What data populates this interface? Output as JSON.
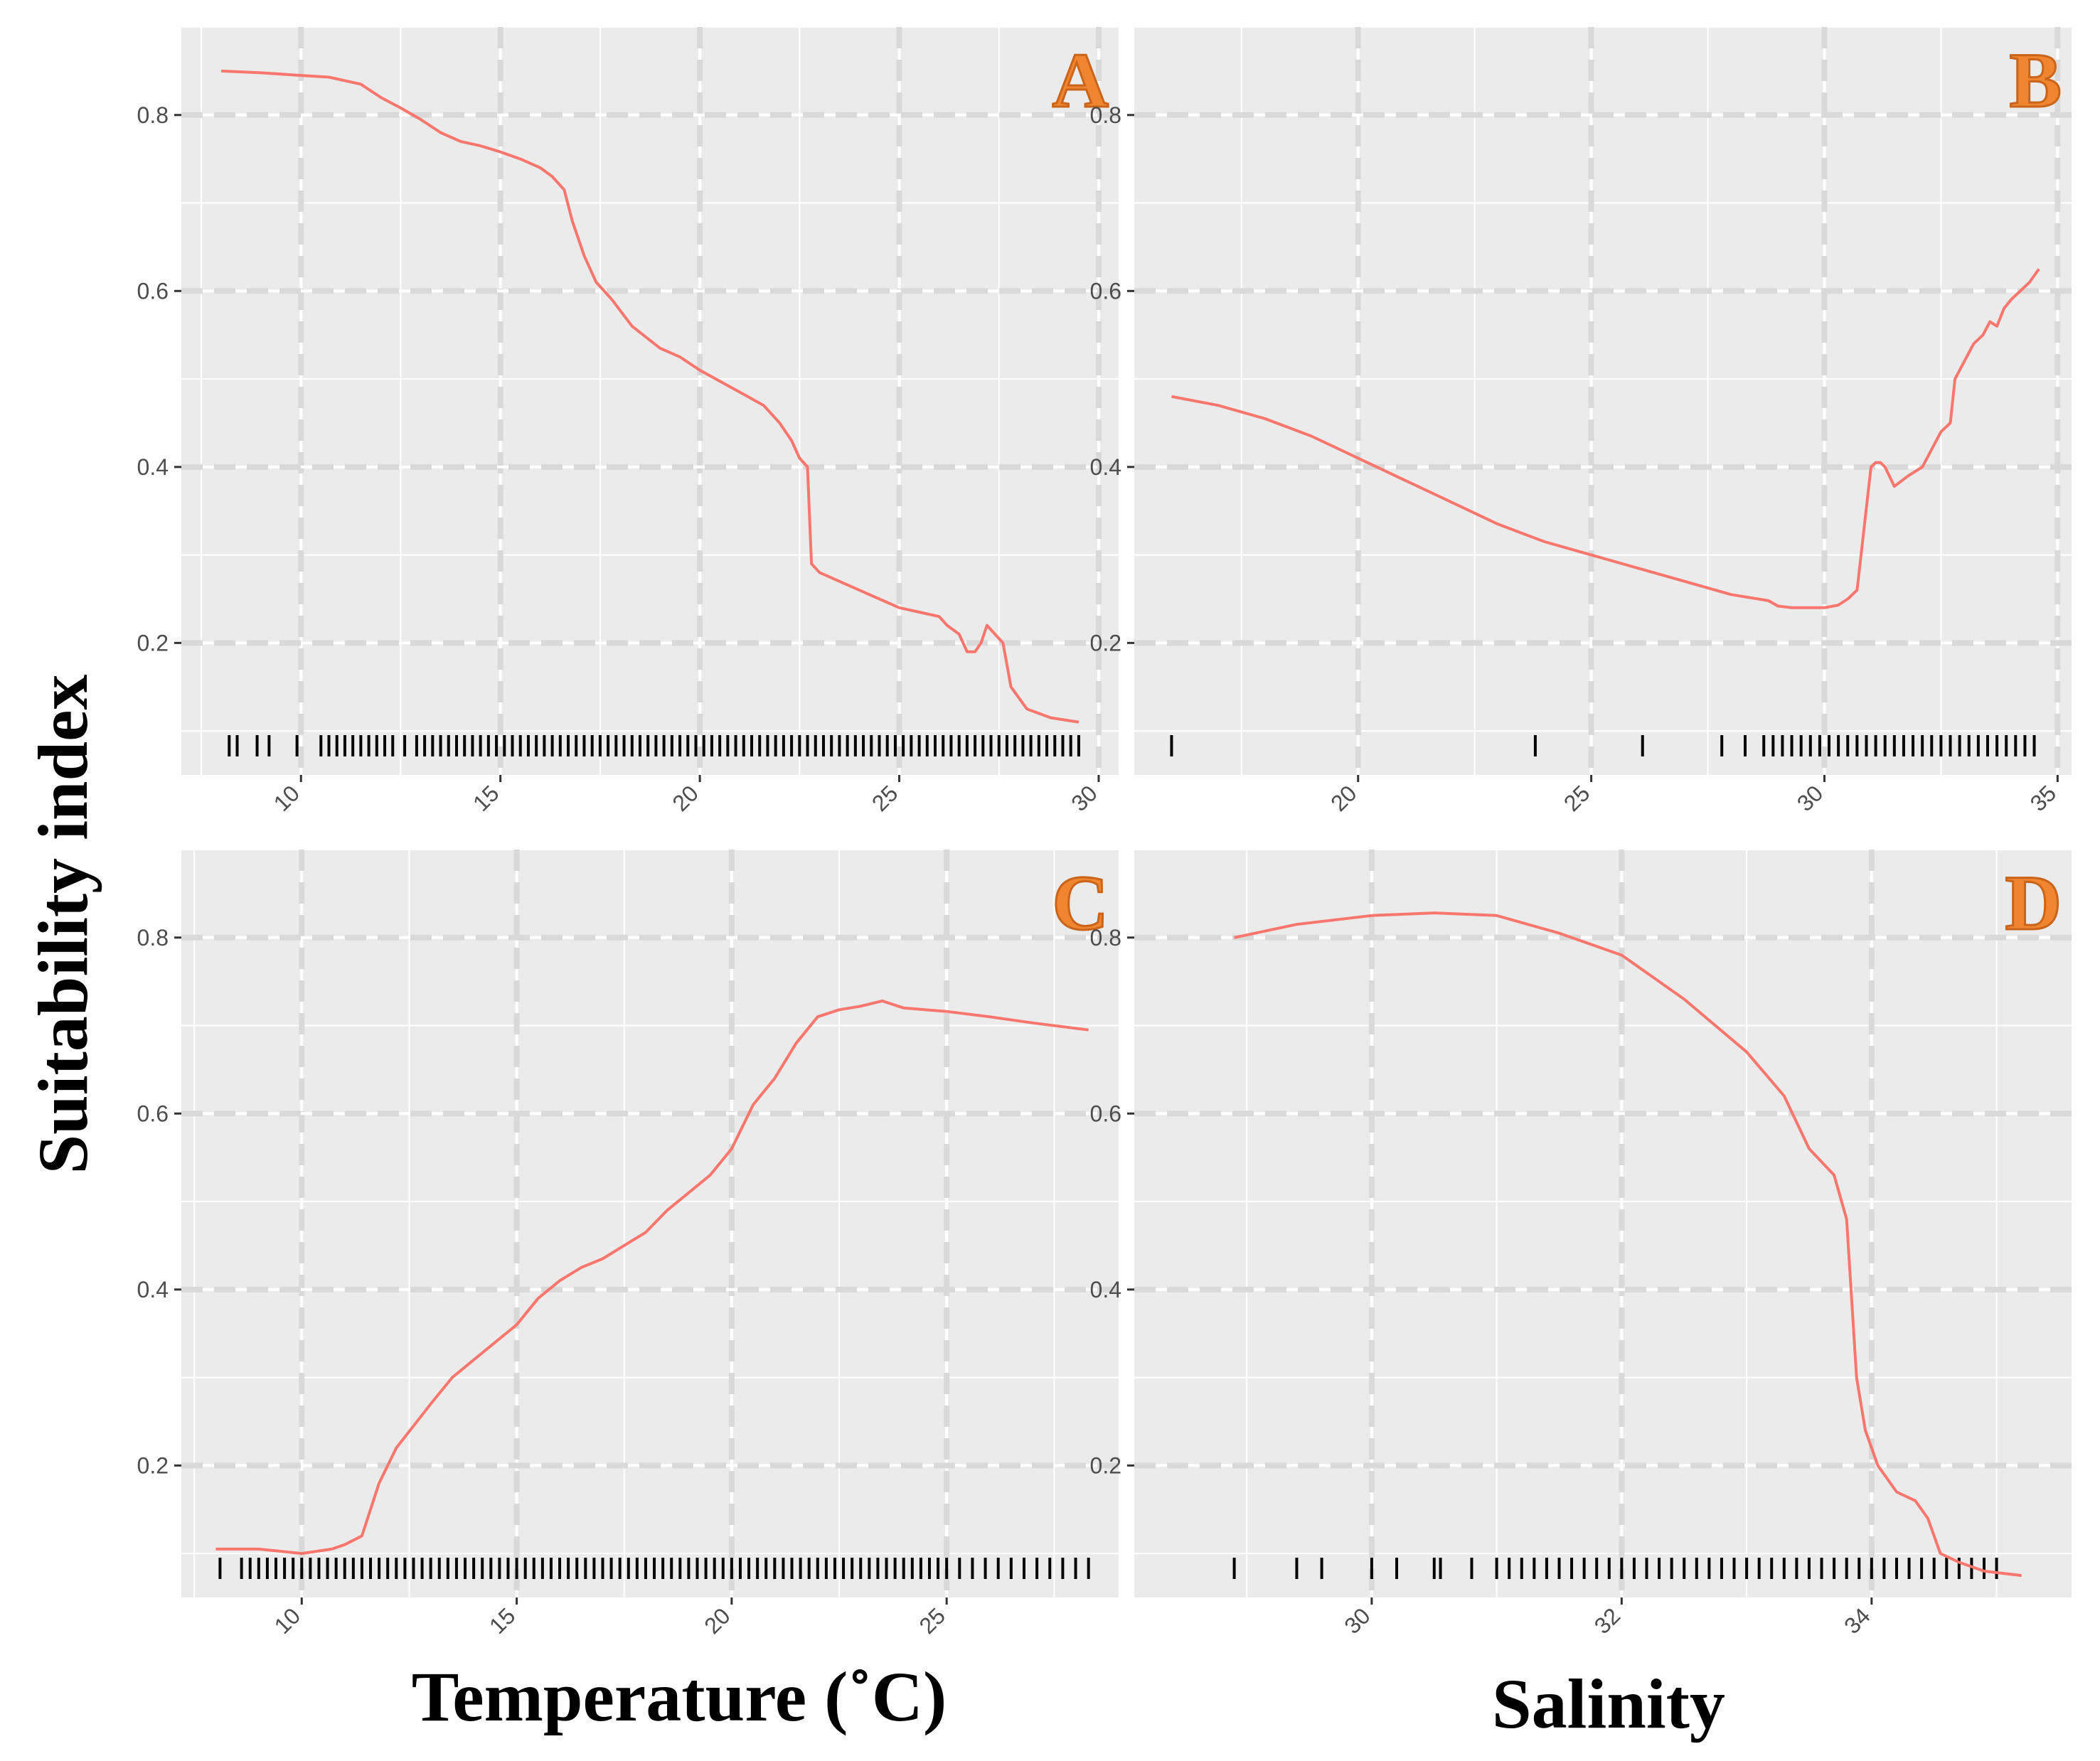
{
  "figure": {
    "ylabel": "Suitability index",
    "xlabel_temperature": "Temperature (˚C)",
    "xlabel_salinity": "Salinity",
    "colors": {
      "panel_background": "#ebebeb",
      "grid_major": "#ffffff",
      "grid_dashed": "#d9d9d9",
      "curve": "#f8766d",
      "rug": "#000000",
      "letter": "#f0852f"
    }
  },
  "chart_data": [
    {
      "type": "line",
      "panel": "A",
      "xlabel": "Temperature (˚C)",
      "ylabel": "Suitability index",
      "xlim": [
        7,
        30.5
      ],
      "ylim": [
        0.05,
        0.9
      ],
      "xticks": [
        10,
        15,
        20,
        25,
        30
      ],
      "yticks": [
        0.2,
        0.4,
        0.6,
        0.8
      ],
      "x": [
        8,
        9,
        10,
        10.7,
        11.5,
        12,
        12.5,
        13,
        13.5,
        14,
        14.5,
        15,
        15.5,
        16,
        16.3,
        16.6,
        16.8,
        17.1,
        17.4,
        17.8,
        18.3,
        19,
        19.5,
        20,
        20.6,
        21.2,
        21.6,
        22,
        22.3,
        22.5,
        22.7,
        22.8,
        23,
        23.5,
        24,
        24.5,
        25,
        25.5,
        26,
        26.2,
        26.5,
        26.7,
        26.9,
        27.05,
        27.2,
        27.4,
        27.6,
        27.8,
        28.2,
        28.8,
        29.5
      ],
      "y": [
        0.85,
        0.848,
        0.845,
        0.843,
        0.835,
        0.82,
        0.808,
        0.795,
        0.78,
        0.77,
        0.765,
        0.758,
        0.75,
        0.74,
        0.73,
        0.715,
        0.68,
        0.64,
        0.61,
        0.59,
        0.56,
        0.535,
        0.525,
        0.51,
        0.495,
        0.48,
        0.47,
        0.45,
        0.43,
        0.41,
        0.4,
        0.29,
        0.28,
        0.27,
        0.26,
        0.25,
        0.24,
        0.235,
        0.23,
        0.22,
        0.21,
        0.19,
        0.19,
        0.2,
        0.22,
        0.21,
        0.2,
        0.15,
        0.125,
        0.115,
        0.11
      ],
      "rug": [
        8.2,
        8.4,
        8.9,
        9.2,
        9.9,
        10.5,
        10.7,
        10.9,
        11.1,
        11.3,
        11.5,
        11.7,
        11.9,
        12.1,
        12.3,
        12.6,
        12.9,
        13.1,
        13.3,
        13.5,
        13.7,
        13.9,
        14.1,
        14.3,
        14.5,
        14.7,
        14.9,
        15.1,
        15.3,
        15.5,
        15.7,
        15.9,
        16.1,
        16.3,
        16.5,
        16.7,
        16.9,
        17.1,
        17.3,
        17.5,
        17.7,
        17.9,
        18.1,
        18.3,
        18.5,
        18.7,
        18.9,
        19.1,
        19.3,
        19.5,
        19.7,
        19.9,
        20.1,
        20.3,
        20.5,
        20.7,
        20.9,
        21.1,
        21.3,
        21.5,
        21.7,
        21.9,
        22.1,
        22.3,
        22.5,
        22.7,
        22.9,
        23.1,
        23.3,
        23.5,
        23.7,
        23.9,
        24.1,
        24.3,
        24.5,
        24.7,
        24.9,
        25.1,
        25.3,
        25.5,
        25.7,
        25.9,
        26.1,
        26.3,
        26.5,
        26.7,
        26.9,
        27.1,
        27.3,
        27.5,
        27.7,
        27.9,
        28.1,
        28.3,
        28.5,
        28.7,
        28.9,
        29.1,
        29.3,
        29.5
      ]
    },
    {
      "type": "line",
      "panel": "B",
      "xlabel": "Salinity",
      "ylabel": "Suitability index",
      "xlim": [
        15.2,
        35.3
      ],
      "ylim": [
        0.05,
        0.9
      ],
      "xticks": [
        20,
        25,
        30,
        35
      ],
      "yticks": [
        0.2,
        0.4,
        0.6,
        0.8
      ],
      "x": [
        16,
        17,
        18,
        19,
        20,
        21,
        22,
        23,
        24,
        25,
        26,
        27,
        28,
        28.8,
        29,
        29.3,
        29.6,
        30,
        30.3,
        30.5,
        30.7,
        30.85,
        31,
        31.1,
        31.2,
        31.3,
        31.5,
        31.8,
        32.1,
        32.3,
        32.5,
        32.7,
        32.8,
        33.0,
        33.2,
        33.4,
        33.55,
        33.7,
        33.85,
        34.0,
        34.2,
        34.4,
        34.6
      ],
      "y": [
        0.48,
        0.47,
        0.455,
        0.435,
        0.41,
        0.385,
        0.36,
        0.335,
        0.315,
        0.3,
        0.285,
        0.27,
        0.255,
        0.248,
        0.242,
        0.24,
        0.24,
        0.24,
        0.243,
        0.25,
        0.26,
        0.33,
        0.4,
        0.405,
        0.405,
        0.4,
        0.378,
        0.39,
        0.4,
        0.42,
        0.44,
        0.45,
        0.5,
        0.52,
        0.54,
        0.55,
        0.565,
        0.56,
        0.58,
        0.59,
        0.6,
        0.61,
        0.625
      ],
      "rug": [
        16,
        23.8,
        26.1,
        27.8,
        28.3,
        28.7,
        28.9,
        29.1,
        29.3,
        29.5,
        29.7,
        29.9,
        30.1,
        30.3,
        30.5,
        30.7,
        30.9,
        31.1,
        31.3,
        31.5,
        31.7,
        31.9,
        32.1,
        32.3,
        32.5,
        32.7,
        32.9,
        33.1,
        33.3,
        33.5,
        33.7,
        33.9,
        34.1,
        34.3,
        34.5
      ]
    },
    {
      "type": "line",
      "panel": "C",
      "xlabel": "Temperature (˚C)",
      "ylabel": "Suitability index",
      "xlim": [
        7.2,
        29
      ],
      "ylim": [
        0.05,
        0.9
      ],
      "xticks": [
        10,
        15,
        20,
        25
      ],
      "yticks": [
        0.2,
        0.4,
        0.6,
        0.8
      ],
      "x": [
        8,
        9,
        10,
        10.7,
        11,
        11.4,
        11.8,
        12.2,
        12.6,
        13,
        13.5,
        14,
        14.5,
        15,
        15.5,
        16,
        16.5,
        17,
        17.5,
        18,
        18.5,
        19,
        19.5,
        20,
        20.5,
        21,
        21.5,
        22,
        22.5,
        23,
        23.5,
        24,
        25,
        26,
        27,
        28.3
      ],
      "y": [
        0.105,
        0.105,
        0.1,
        0.105,
        0.11,
        0.12,
        0.18,
        0.22,
        0.245,
        0.27,
        0.3,
        0.32,
        0.34,
        0.36,
        0.39,
        0.41,
        0.425,
        0.435,
        0.45,
        0.465,
        0.49,
        0.51,
        0.53,
        0.56,
        0.61,
        0.64,
        0.68,
        0.71,
        0.718,
        0.722,
        0.728,
        0.72,
        0.716,
        0.71,
        0.703,
        0.695
      ],
      "rug": [
        8.1,
        8.6,
        8.8,
        9.0,
        9.2,
        9.4,
        9.6,
        9.8,
        10.0,
        10.2,
        10.4,
        10.6,
        10.8,
        11.0,
        11.2,
        11.4,
        11.6,
        11.8,
        12.0,
        12.2,
        12.4,
        12.6,
        12.8,
        13.0,
        13.2,
        13.4,
        13.6,
        13.8,
        14.0,
        14.2,
        14.4,
        14.6,
        14.8,
        15.0,
        15.2,
        15.4,
        15.6,
        15.8,
        16.0,
        16.2,
        16.4,
        16.6,
        16.8,
        17.0,
        17.2,
        17.4,
        17.6,
        17.8,
        18.0,
        18.2,
        18.4,
        18.6,
        18.8,
        19.0,
        19.2,
        19.4,
        19.6,
        19.8,
        20.0,
        20.2,
        20.4,
        20.6,
        20.8,
        21.0,
        21.2,
        21.4,
        21.6,
        21.8,
        22.0,
        22.2,
        22.4,
        22.6,
        22.8,
        23.0,
        23.2,
        23.4,
        23.6,
        23.8,
        24.0,
        24.2,
        24.4,
        24.6,
        24.8,
        25.0,
        25.3,
        25.6,
        25.9,
        26.2,
        26.5,
        26.8,
        27.1,
        27.4,
        27.7,
        28.0,
        28.3
      ]
    },
    {
      "type": "line",
      "panel": "D",
      "xlabel": "Salinity",
      "ylabel": "Suitability index",
      "xlim": [
        28.1,
        35.6
      ],
      "ylim": [
        0.05,
        0.9
      ],
      "xticks": [
        30,
        32,
        34
      ],
      "yticks": [
        0.2,
        0.4,
        0.6,
        0.8
      ],
      "x": [
        28.9,
        29.4,
        30,
        30.5,
        31,
        31.5,
        32,
        32.5,
        33,
        33.3,
        33.5,
        33.7,
        33.8,
        33.88,
        33.95,
        34.05,
        34.2,
        34.35,
        34.45,
        34.55,
        34.7,
        34.9,
        35.2
      ],
      "y": [
        0.8,
        0.815,
        0.825,
        0.828,
        0.825,
        0.805,
        0.78,
        0.73,
        0.67,
        0.62,
        0.56,
        0.53,
        0.48,
        0.3,
        0.24,
        0.2,
        0.17,
        0.16,
        0.14,
        0.1,
        0.09,
        0.08,
        0.075
      ],
      "rug": [
        28.9,
        29.4,
        29.6,
        30.0,
        30.2,
        30.5,
        30.55,
        30.8,
        31.0,
        31.1,
        31.2,
        31.3,
        31.4,
        31.5,
        31.6,
        31.7,
        31.8,
        31.9,
        32.0,
        32.1,
        32.2,
        32.3,
        32.4,
        32.5,
        32.6,
        32.7,
        32.8,
        32.9,
        33.0,
        33.1,
        33.2,
        33.3,
        33.4,
        33.5,
        33.6,
        33.7,
        33.8,
        33.9,
        34.0,
        34.1,
        34.2,
        34.3,
        34.4,
        34.5,
        34.6,
        34.7,
        34.8,
        34.9,
        35.0
      ]
    }
  ]
}
